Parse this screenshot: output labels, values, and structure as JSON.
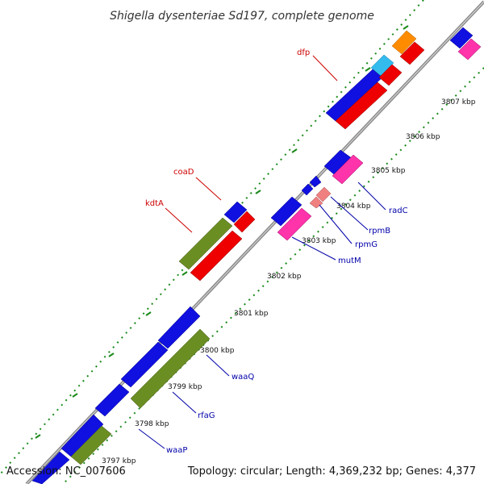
{
  "title": "Shigella dysenteriae Sd197, complete genome",
  "accession": "Accession: NC_007606",
  "topology": "Topology: circular; Length: 4,369,232 bp; Genes: 4,377",
  "colors": {
    "backbone": "#8c8c8c",
    "tick_dots": "#1a8a1a",
    "label_red": "#cc0000",
    "label_blue": "#0000aa"
  },
  "ticks": [
    "3797 kbp",
    "3798 kbp",
    "3799 kbp",
    "3800 kbp",
    "3801 kbp",
    "3802 kbp",
    "3803 kbp",
    "3804 kbp",
    "3805 kbp",
    "3806 kbp",
    "3807 kbp"
  ],
  "gene_labels": {
    "dfp": "dfp",
    "coaD": "coaD",
    "kdtA": "kdtA",
    "radC": "radC",
    "rpmB": "rpmB",
    "rpmG": "rpmG",
    "mutM": "mutM",
    "waaQ": "waaQ",
    "rfaG": "rfaG",
    "waaP": "waaP"
  }
}
